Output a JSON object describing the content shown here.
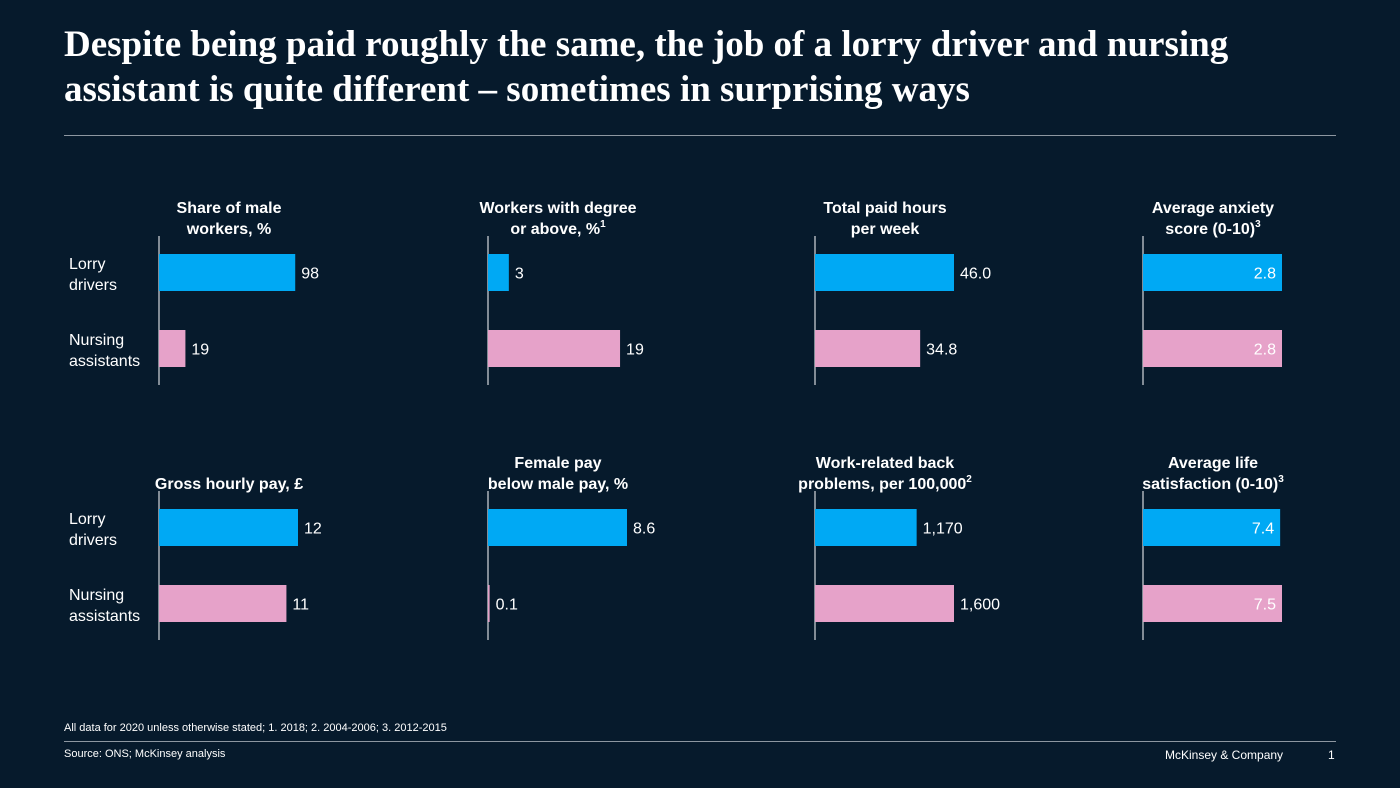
{
  "title": "Despite being paid roughly the same, the job of a lorry driver and nursing assistant is quite different – sometimes in surprising ways",
  "footnote": "All data for 2020 unless otherwise stated; 1. 2018; 2. 2004-2006; 3. 2012-2015",
  "source": "Source: ONS; McKinsey analysis",
  "brand": "McKinsey & Company",
  "page_number": "1",
  "colors": {
    "background": "#061a2c",
    "lorry_drivers": "#00a9f4",
    "nursing_assistants": "#e6a2c9",
    "axis": "#ffffff",
    "rule": "#8d97a1"
  },
  "categories": [
    [
      "Lorry",
      "drivers"
    ],
    [
      "Nursing",
      "assistants"
    ]
  ],
  "chart_data": [
    {
      "type": "bar",
      "orientation": "horizontal",
      "title": [
        "Share of male",
        "workers, %"
      ],
      "title_sup": "",
      "categories": [
        "Lorry drivers",
        "Nursing assistants"
      ],
      "values": [
        98,
        19
      ],
      "value_labels": [
        "98",
        "19"
      ],
      "xlim": [
        0,
        100
      ]
    },
    {
      "type": "bar",
      "orientation": "horizontal",
      "title": [
        "Workers with degree",
        "or above, %"
      ],
      "title_sup": "1",
      "categories": [
        "Lorry drivers",
        "Nursing assistants"
      ],
      "values": [
        3,
        19
      ],
      "value_labels": [
        "3",
        "19"
      ],
      "xlim": [
        0,
        20
      ]
    },
    {
      "type": "bar",
      "orientation": "horizontal",
      "title": [
        "Total paid hours",
        "per week"
      ],
      "title_sup": "",
      "categories": [
        "Lorry drivers",
        "Nursing assistants"
      ],
      "values": [
        46.0,
        34.8
      ],
      "value_labels": [
        "46.0",
        "34.8"
      ],
      "xlim": [
        0,
        46
      ]
    },
    {
      "type": "bar",
      "orientation": "horizontal",
      "title": [
        "Average anxiety",
        "score (0-10)"
      ],
      "title_sup": "3",
      "categories": [
        "Lorry drivers",
        "Nursing assistants"
      ],
      "values": [
        2.8,
        2.8
      ],
      "value_labels": [
        "2.8",
        "2.8"
      ],
      "xlim": [
        0,
        2.8
      ],
      "labels_inside": true
    },
    {
      "type": "bar",
      "orientation": "horizontal",
      "title": [
        "",
        "Gross hourly pay, £"
      ],
      "title_sup": "",
      "categories": [
        "Lorry drivers",
        "Nursing assistants"
      ],
      "values": [
        12,
        11
      ],
      "value_labels": [
        "12",
        "11"
      ],
      "xlim": [
        0,
        12
      ]
    },
    {
      "type": "bar",
      "orientation": "horizontal",
      "title": [
        "Female pay",
        "below male pay, %"
      ],
      "title_sup": "",
      "categories": [
        "Lorry drivers",
        "Nursing assistants"
      ],
      "values": [
        8.6,
        0.1
      ],
      "value_labels": [
        "8.6",
        "0.1"
      ],
      "xlim": [
        0,
        8.6
      ]
    },
    {
      "type": "bar",
      "orientation": "horizontal",
      "title": [
        "Work-related back",
        "problems, per 100,000"
      ],
      "title_sup": "2",
      "categories": [
        "Lorry drivers",
        "Nursing assistants"
      ],
      "values": [
        1170,
        1600
      ],
      "value_labels": [
        "1,170",
        "1,600"
      ],
      "xlim": [
        0,
        1600
      ]
    },
    {
      "type": "bar",
      "orientation": "horizontal",
      "title": [
        "Average life",
        "satisfaction (0-10)"
      ],
      "title_sup": "3",
      "categories": [
        "Lorry drivers",
        "Nursing assistants"
      ],
      "values": [
        7.4,
        7.5
      ],
      "value_labels": [
        "7.4",
        "7.5"
      ],
      "xlim": [
        0,
        7.5
      ],
      "labels_inside": true
    }
  ]
}
